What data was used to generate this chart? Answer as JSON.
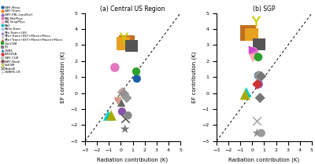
{
  "title_a": "(a) Central US Region",
  "title_b": "(b) SGP",
  "xlabel": "Radiation contribution (K)",
  "ylabel": "EF contribution (K)",
  "xlim": [
    -3,
    5
  ],
  "ylim": [
    -3,
    5
  ],
  "points_a": [
    {
      "rad": 1.35,
      "ef": 0.9,
      "color": "#1a5fa8",
      "marker": "o",
      "size": 55
    },
    {
      "rad": 1.3,
      "ef": 1.35,
      "color": "#2ca02c",
      "marker": "o",
      "size": 55
    },
    {
      "rad": -0.5,
      "ef": 1.6,
      "color": "#e377c2",
      "marker": "o",
      "size": 70
    },
    {
      "rad": 0.5,
      "ef": 3.15,
      "color": "#c07020",
      "marker": "s",
      "size": 200
    },
    {
      "rad": 0.2,
      "ef": 3.1,
      "color": "#e8a020",
      "marker": "s",
      "size": 140
    },
    {
      "rad": 0.25,
      "ef": 3.45,
      "color": "#cccc00",
      "marker": "$\\Upsilon$",
      "size": 60
    },
    {
      "rad": 0.9,
      "ef": 2.95,
      "color": "#555555",
      "marker": "s",
      "size": 130
    },
    {
      "rad": 0.12,
      "ef": 0.05,
      "color": "#c0a0a0",
      "marker": "D",
      "size": 45
    },
    {
      "rad": 0.28,
      "ef": -0.05,
      "color": "#909090",
      "marker": "D",
      "size": 45
    },
    {
      "rad": -1.05,
      "ef": -1.4,
      "color": "#00cccc",
      "marker": "^",
      "size": 90
    },
    {
      "rad": -0.8,
      "ef": -1.4,
      "color": "#aaaa00",
      "marker": "^",
      "size": 90
    },
    {
      "rad": 0.1,
      "ef": -1.15,
      "color": "#8855aa",
      "marker": "o",
      "size": 55
    },
    {
      "rad": 0.35,
      "ef": -1.6,
      "color": "#555555",
      "marker": "x",
      "size": 55
    },
    {
      "rad": 0.6,
      "ef": -1.4,
      "color": "#888888",
      "marker": "o",
      "size": 55
    },
    {
      "rad": 0.35,
      "ef": -2.25,
      "color": "#777777",
      "marker": "*",
      "size": 80
    },
    {
      "rad": -0.25,
      "ef": -0.5,
      "color": "#dd9988",
      "marker": "v",
      "size": 55
    },
    {
      "rad": 0.5,
      "ef": -0.3,
      "color": "#999999",
      "marker": "D",
      "size": 45
    },
    {
      "rad": 0.05,
      "ef": -0.6,
      "color": "#666666",
      "marker": "^",
      "size": 55
    }
  ],
  "points_b": [
    {
      "rad": 0.5,
      "ef": 1.1,
      "color": "#1a5fa8",
      "marker": "o",
      "size": 55
    },
    {
      "rad": 0.65,
      "ef": 1.05,
      "color": "#2ca02c",
      "marker": "o",
      "size": 55
    },
    {
      "rad": -0.35,
      "ef": 3.75,
      "color": "#c07020",
      "marker": "s",
      "size": 200
    },
    {
      "rad": -0.05,
      "ef": 3.65,
      "color": "#e8a020",
      "marker": "s",
      "size": 140
    },
    {
      "rad": 0.55,
      "ef": 3.05,
      "color": "#555555",
      "marker": "s",
      "size": 130
    },
    {
      "rad": 0.3,
      "ef": 4.5,
      "color": "#cccc00",
      "marker": "$\\Upsilon$",
      "size": 60
    },
    {
      "rad": 0.1,
      "ef": 2.6,
      "color": "#e377c2",
      "marker": "o",
      "size": 70
    },
    {
      "rad": 0.05,
      "ef": 2.18,
      "color": "#ffaaaa",
      "marker": "v",
      "size": 60
    },
    {
      "rad": 0.5,
      "ef": 2.25,
      "color": "#2ca02c",
      "marker": "o",
      "size": 60
    },
    {
      "rad": 0.05,
      "ef": 2.7,
      "color": "#cc44cc",
      "marker": ">",
      "size": 60
    },
    {
      "rad": -0.5,
      "ef": 0.05,
      "color": "#00cccc",
      "marker": "^",
      "size": 90
    },
    {
      "rad": -0.6,
      "ef": -0.1,
      "color": "#aaaa00",
      "marker": "^",
      "size": 90
    },
    {
      "rad": 0.55,
      "ef": 1.1,
      "color": "#999999",
      "marker": "D",
      "size": 45
    },
    {
      "rad": 0.75,
      "ef": 1.05,
      "color": "#777777",
      "marker": "D",
      "size": 45
    },
    {
      "rad": 0.65,
      "ef": -0.3,
      "color": "#777777",
      "marker": "D",
      "size": 45
    },
    {
      "rad": 0.35,
      "ef": -1.75,
      "color": "#aaaaaa",
      "marker": "x",
      "size": 55
    },
    {
      "rad": 0.4,
      "ef": -2.5,
      "color": "#888888",
      "marker": "*",
      "size": 80
    },
    {
      "rad": 0.75,
      "ef": -2.5,
      "color": "#999999",
      "marker": "o",
      "size": 55
    },
    {
      "rad": 0.55,
      "ef": 0.55,
      "color": "#8855aa",
      "marker": "o",
      "size": 55
    },
    {
      "rad": 0.42,
      "ef": 0.55,
      "color": "#cc3333",
      "marker": "D",
      "size": 45
    }
  ],
  "legend_labels": [
    "WRF-Meso",
    "WRF-Thom",
    "WRF-PBL-LandSurf",
    "RAJ-MidPhys",
    "RAJ-SnapPhys",
    "RA3",
    "RA3n-Trans",
    "MJo-Trans+LSS",
    "MJo+Trans+SST+Micro+Micro",
    "MJo+Trans+SST+Micro+Macro+Micro",
    "CanCSM",
    "FO",
    "CNRS",
    "LMDZ5A",
    "WRF-CLM",
    "WRF-Noah",
    "SuESM",
    "ModelE",
    "CNRM5-CR"
  ],
  "legend_colors": [
    "#1a5fa8",
    "#ff7f0e",
    "#9467bd",
    "#e377c2",
    "#f7b6d2",
    "#17becf",
    "#aec7e8",
    "#9467bd",
    "#c5b0d5",
    "#8c6d31",
    "#2ca02c",
    "#7f7f7f",
    "#1f77b4",
    "#d62728",
    "#c7c7c7",
    "#8c564b",
    "#bcbd22",
    "#7f7f7f",
    "#c7c7c7"
  ],
  "legend_markers": [
    "o",
    "o",
    "o",
    "o",
    "o",
    "o",
    "o",
    "^",
    "^",
    "^",
    "s",
    "s",
    "^",
    "o",
    "s",
    "D",
    "x",
    "x",
    "+"
  ]
}
